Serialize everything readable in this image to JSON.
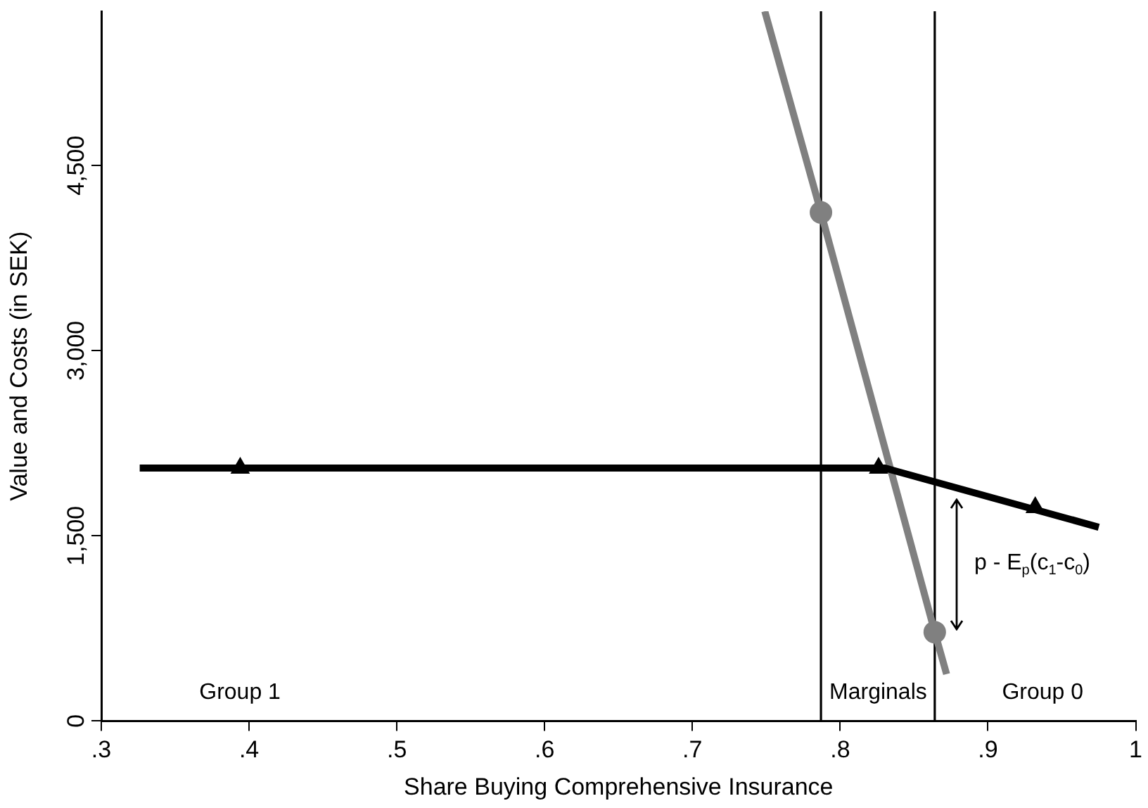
{
  "chart_data": {
    "type": "line",
    "xlabel": "Share Buying Comprehensive Insurance",
    "ylabel": "Value and Costs (in SEK)",
    "xlim": [
      0.3,
      1
    ],
    "ylim": [
      0,
      5750
    ],
    "xticks": [
      {
        "value": 0.3,
        "label": ".3"
      },
      {
        "value": 0.4,
        "label": ".4"
      },
      {
        "value": 0.5,
        "label": ".5"
      },
      {
        "value": 0.6,
        "label": ".6"
      },
      {
        "value": 0.7,
        "label": ".7"
      },
      {
        "value": 0.8,
        "label": ".8"
      },
      {
        "value": 0.9,
        "label": ".9"
      },
      1
    ],
    "yticks": [
      0,
      {
        "value": 1500,
        "label": "1,500"
      },
      {
        "value": 3000,
        "label": "3,000"
      },
      {
        "value": 4500,
        "label": "4,500"
      }
    ],
    "grid": false,
    "legend": false,
    "series": [
      {
        "color": "#000000",
        "marker": "none",
        "x": [
          0.326,
          0.83,
          0.975
        ],
        "values": [
          2050,
          2050,
          1570
        ]
      },
      {
        "color": "#808080",
        "marker": "none",
        "x": [
          0.749,
          0.787,
          0.864,
          0.872
        ],
        "values": [
          5750,
          4120,
          720,
          380
        ]
      },
      {
        "type": "scatter",
        "color": "#000000",
        "marker": "triangle",
        "x": [
          0.394,
          0.826,
          0.932
        ],
        "values": [
          2050,
          2050,
          1730
        ]
      },
      {
        "type": "scatter",
        "color": "#808080",
        "marker": "circle",
        "x": [
          0.787,
          0.864
        ],
        "values": [
          4120,
          720
        ]
      }
    ],
    "ref_lines": [
      {
        "axis": "x",
        "value": 0.787,
        "color": "#000000"
      },
      {
        "axis": "x",
        "value": 0.864,
        "color": "#000000"
      }
    ],
    "annotations": [
      "Group 1",
      "Marginals",
      "Group 0",
      "p - E$_{p}$(c$_{1}$-c$_{0}$)"
    ]
  }
}
